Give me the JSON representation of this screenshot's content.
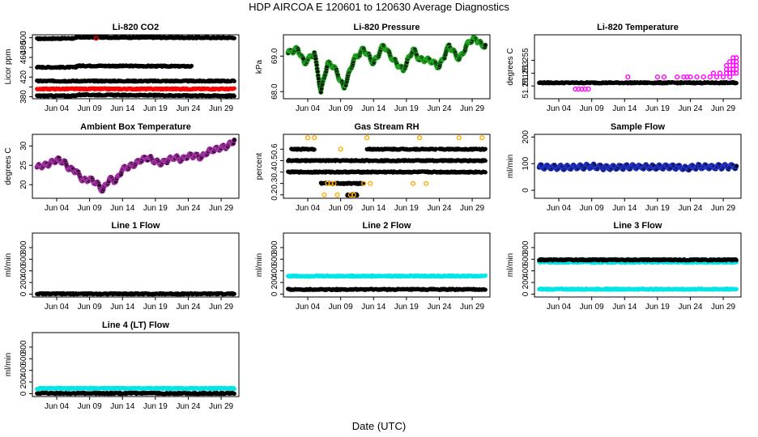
{
  "figure": {
    "title": "HDP    AIRCOA E    120601 to 120630    Average Diagnostics",
    "xlabel": "Date (UTC)"
  },
  "chart_data": [
    {
      "type": "scatter",
      "title": "Li-820 CO2",
      "ylabel": "Licor ppm",
      "ylim": [
        376,
        506
      ],
      "yticks": [
        380,
        400,
        420,
        440,
        460,
        480,
        500
      ],
      "ytick_labels": [
        "380",
        "",
        "420",
        "",
        "460",
        "480",
        "500"
      ],
      "x_ticks": [
        "Jun 04",
        "Jun 09",
        "Jun 14",
        "Jun 19",
        "Jun 24",
        "Jun 29"
      ],
      "series": [
        {
          "name": "ref-high",
          "color": "#000000",
          "kind": "band",
          "segments": [
            {
              "x": [
                1,
                7
              ],
              "y": [
                498,
                499
              ]
            },
            {
              "x": [
                7,
                31
              ],
              "y": [
                501,
                500
              ]
            }
          ]
        },
        {
          "name": "ref-mid",
          "color": "#000000",
          "kind": "band",
          "segments": [
            {
              "x": [
                1,
                7
              ],
              "y": [
                440,
                440
              ]
            },
            {
              "x": [
                7,
                24.5
              ],
              "y": [
                443,
                442
              ]
            }
          ]
        },
        {
          "name": "sample-upper",
          "color": "#000000",
          "kind": "band",
          "segments": [
            {
              "x": [
                1,
                31
              ],
              "y": [
                412,
                412
              ]
            }
          ]
        },
        {
          "name": "sample",
          "color": "#ff0000",
          "kind": "band",
          "segments": [
            {
              "x": [
                1,
                31
              ],
              "y": [
                396,
                396
              ]
            }
          ]
        },
        {
          "name": "ref-low",
          "color": "#000000",
          "kind": "band",
          "segments": [
            {
              "x": [
                1,
                7
              ],
              "y": [
                382,
                382
              ]
            },
            {
              "x": [
                7,
                31
              ],
              "y": [
                384,
                382
              ]
            }
          ]
        },
        {
          "name": "outlier",
          "color": "#ff0000",
          "kind": "points",
          "x": [
            10
          ],
          "y": [
            499
          ]
        }
      ]
    },
    {
      "type": "line",
      "title": "Li-820 Pressure",
      "ylabel": "kPa",
      "ylim": [
        67.8,
        69.6
      ],
      "yticks": [
        68.0,
        69.0
      ],
      "ytick_labels": [
        "68.0",
        "69.0"
      ],
      "x_ticks": [
        "Jun 04",
        "Jun 09",
        "Jun 14",
        "Jun 19",
        "Jun 24",
        "Jun 29"
      ],
      "series": [
        {
          "name": "pressure",
          "color": "#000000",
          "edge_color": "#22aa22",
          "kind": "line",
          "x": [
            1,
            2.5,
            3.5,
            5,
            6,
            7,
            8,
            9.5,
            11,
            12.5,
            14,
            15.5,
            17,
            18.5,
            20,
            21,
            22.5,
            24,
            25.5,
            27,
            28.5,
            29.5,
            30.5,
            31
          ],
          "y": [
            69.1,
            69.2,
            68.8,
            69.1,
            68.0,
            68.8,
            68.7,
            68.1,
            68.9,
            69.2,
            68.8,
            69.3,
            68.9,
            68.6,
            69.2,
            68.9,
            68.9,
            68.7,
            69.3,
            68.9,
            69.4,
            69.5,
            69.3,
            69.3
          ]
        }
      ]
    },
    {
      "type": "scatter",
      "title": "Li-820 Temperature",
      "ylabel": "degrees C",
      "ylim": [
        51.249,
        51.259
      ],
      "yticks": [
        51.251,
        51.253,
        51.255
      ],
      "ytick_labels": [
        "51.251",
        "51.253",
        "51.255"
      ],
      "x_ticks": [
        "Jun 04",
        "Jun 09",
        "Jun 14",
        "Jun 19",
        "Jun 24",
        "Jun 29"
      ],
      "series": [
        {
          "name": "temperature",
          "color": "#000000",
          "kind": "band",
          "segments": [
            {
              "x": [
                1,
                31
              ],
              "y": [
                51.2515,
                51.2515
              ]
            }
          ]
        },
        {
          "name": "discrete-high",
          "color": "#000000",
          "edge_color": "#ff00ff",
          "kind": "points",
          "x": [
            6.5,
            7.0,
            7.5,
            8.0,
            8.5,
            14.5,
            19.0,
            20.0,
            22.0,
            23.0,
            23.5,
            24.0,
            25.0,
            26.0,
            27.0,
            27.5,
            28.0,
            28.5,
            29.0,
            29.5,
            30.0,
            30.5,
            31.0,
            29.5,
            30.0,
            30.5,
            31.0,
            29.5,
            30.0,
            30.5,
            31.0,
            30.0,
            30.5,
            31.0,
            30.5,
            31.0
          ],
          "y": [
            51.2505,
            51.2505,
            51.2505,
            51.2505,
            51.2505,
            51.2524,
            51.2524,
            51.2524,
            51.2524,
            51.2524,
            51.2524,
            51.2524,
            51.2524,
            51.2524,
            51.2524,
            51.253,
            51.2524,
            51.253,
            51.2524,
            51.253,
            51.2524,
            51.2536,
            51.2542,
            51.2536,
            51.253,
            51.253,
            51.253,
            51.2542,
            51.2536,
            51.2542,
            51.2536,
            51.2548,
            51.2548,
            51.2548,
            51.2554,
            51.2554
          ]
        }
      ]
    },
    {
      "type": "line",
      "title": "Ambient Box Temperature",
      "ylabel": "degrees C",
      "ylim": [
        16.5,
        33
      ],
      "yticks": [
        20,
        25,
        30
      ],
      "ytick_labels": [
        "20",
        "25",
        "30"
      ],
      "x_ticks": [
        "Jun 04",
        "Jun 09",
        "Jun 14",
        "Jun 19",
        "Jun 24",
        "Jun 29"
      ],
      "series": [
        {
          "name": "ambient",
          "color": "#000000",
          "edge_color": "#aa33aa",
          "kind": "line",
          "x": [
            1,
            2,
            3,
            4,
            5,
            6,
            7,
            8,
            9,
            10,
            11,
            12,
            13,
            14,
            15,
            16,
            17,
            18,
            19,
            20,
            21,
            22,
            23,
            24,
            25,
            26,
            27,
            28,
            29,
            30,
            31
          ],
          "y": [
            24.5,
            25.0,
            25.5,
            26.5,
            26.0,
            24.0,
            23.5,
            21.0,
            21.5,
            20.5,
            18.5,
            21.5,
            21.0,
            24.0,
            24.5,
            25.5,
            26.5,
            27.0,
            26.0,
            25.5,
            26.5,
            27.0,
            26.5,
            27.5,
            27.5,
            27.0,
            28.5,
            29.0,
            29.5,
            30.0,
            31.5
          ]
        }
      ]
    },
    {
      "type": "scatter",
      "title": "Gas Stream RH",
      "ylabel": "percent",
      "ylim": [
        0.17,
        0.73
      ],
      "yticks": [
        0.2,
        0.3,
        0.4,
        0.5,
        0.6
      ],
      "ytick_labels": [
        "0.2",
        "0.3",
        "0.4",
        "0.5",
        "0.6"
      ],
      "x_ticks": [
        "Jun 04",
        "Jun 09",
        "Jun 14",
        "Jun 19",
        "Jun 24",
        "Jun 29"
      ],
      "series": [
        {
          "name": "rh-0.4",
          "color": "#000000",
          "kind": "band",
          "segments": [
            {
              "x": [
                1,
                31
              ],
              "y": [
                0.4,
                0.4
              ]
            }
          ]
        },
        {
          "name": "rh-0.5",
          "color": "#000000",
          "kind": "band",
          "segments": [
            {
              "x": [
                1,
                31
              ],
              "y": [
                0.5,
                0.5
              ]
            }
          ]
        },
        {
          "name": "rh-0.6",
          "color": "#000000",
          "kind": "band",
          "segments": [
            {
              "x": [
                1.5,
                5
              ],
              "y": [
                0.6,
                0.6
              ]
            },
            {
              "x": [
                13,
                23.5
              ],
              "y": [
                0.6,
                0.6
              ]
            },
            {
              "x": [
                24,
                31
              ],
              "y": [
                0.6,
                0.6
              ]
            }
          ]
        },
        {
          "name": "rh-0.3",
          "color": "#000000",
          "kind": "band",
          "segments": [
            {
              "x": [
                6,
                12.5
              ],
              "y": [
                0.3,
                0.3
              ]
            }
          ]
        },
        {
          "name": "rh-0.2",
          "color": "#000000",
          "kind": "band",
          "segments": [
            {
              "x": [
                10,
                11.5
              ],
              "y": [
                0.2,
                0.2
              ]
            }
          ]
        },
        {
          "name": "rh-high",
          "color": "#000000",
          "edge_color": "#ffaa00",
          "kind": "points",
          "x": [
            4.0,
            5.0,
            9.0,
            13.0,
            21.0,
            27.0,
            30.5,
            7.0,
            7.5,
            8.0,
            12.5,
            13.5,
            20.0,
            22.0,
            6.5,
            8.5,
            11.0,
            10.5
          ],
          "y": [
            0.7,
            0.7,
            0.6,
            0.7,
            0.7,
            0.7,
            0.7,
            0.3,
            0.3,
            0.3,
            0.3,
            0.3,
            0.3,
            0.3,
            0.2,
            0.2,
            0.2,
            0.2
          ]
        }
      ]
    },
    {
      "type": "line",
      "title": "Sample Flow",
      "ylabel": "ml/min",
      "ylim": [
        -30,
        210
      ],
      "yticks": [
        0,
        100,
        200
      ],
      "ytick_labels": [
        "0",
        "100",
        "200"
      ],
      "x_ticks": [
        "Jun 04",
        "Jun 09",
        "Jun 14",
        "Jun 19",
        "Jun 24",
        "Jun 29"
      ],
      "series": [
        {
          "name": "sample-flow",
          "color": "#000000",
          "edge_color": "#2233cc",
          "kind": "line",
          "x": [
            1,
            5,
            9,
            11,
            14,
            18,
            22,
            23.5,
            24,
            25,
            28,
            31
          ],
          "y": [
            88,
            86,
            90,
            85,
            88,
            87,
            88,
            80,
            87,
            88,
            88,
            90
          ]
        }
      ]
    },
    {
      "type": "scatter",
      "title": "Line 1 Flow",
      "ylabel": "ml/min",
      "ylim": [
        -50,
        1050
      ],
      "yticks": [
        0,
        200,
        400,
        600,
        800
      ],
      "ytick_labels": [
        "0",
        "200",
        "400",
        "600",
        "800"
      ],
      "x_ticks": [
        "Jun 04",
        "Jun 09",
        "Jun 14",
        "Jun 19",
        "Jun 24",
        "Jun 29"
      ],
      "series": [
        {
          "name": "line1",
          "color": "#000000",
          "kind": "band",
          "segments": [
            {
              "x": [
                1,
                31
              ],
              "y": [
                5,
                5
              ]
            }
          ]
        }
      ]
    },
    {
      "type": "scatter",
      "title": "Line 2 Flow",
      "ylabel": "ml/min",
      "ylim": [
        -50,
        1050
      ],
      "yticks": [
        0,
        200,
        400,
        600,
        800
      ],
      "ytick_labels": [
        "0",
        "200",
        "400",
        "600",
        "800"
      ],
      "x_ticks": [
        "Jun 04",
        "Jun 09",
        "Jun 14",
        "Jun 19",
        "Jun 24",
        "Jun 29"
      ],
      "series": [
        {
          "name": "line2-cyan",
          "color": "#00e5e5",
          "kind": "band",
          "segments": [
            {
              "x": [
                1,
                31
              ],
              "y": [
                310,
                310
              ]
            }
          ]
        },
        {
          "name": "line2-black",
          "color": "#000000",
          "kind": "band",
          "segments": [
            {
              "x": [
                1,
                31
              ],
              "y": [
                80,
                80
              ]
            }
          ]
        }
      ]
    },
    {
      "type": "scatter",
      "title": "Line 3 Flow",
      "ylabel": "ml/min",
      "ylim": [
        -50,
        1050
      ],
      "yticks": [
        0,
        200,
        400,
        600,
        800
      ],
      "ytick_labels": [
        "0",
        "200",
        "400",
        "600",
        "800"
      ],
      "x_ticks": [
        "Jun 04",
        "Jun 09",
        "Jun 14",
        "Jun 19",
        "Jun 24",
        "Jun 29"
      ],
      "series": [
        {
          "name": "line3-cyan-high",
          "color": "#00e5e5",
          "kind": "band",
          "segments": [
            {
              "x": [
                1,
                31
              ],
              "y": [
                550,
                550
              ]
            }
          ]
        },
        {
          "name": "line3-black",
          "color": "#000000",
          "kind": "band",
          "segments": [
            {
              "x": [
                1,
                31
              ],
              "y": [
                590,
                590
              ]
            }
          ]
        },
        {
          "name": "line3-cyan-low",
          "color": "#00e5e5",
          "kind": "band",
          "segments": [
            {
              "x": [
                1,
                31
              ],
              "y": [
                85,
                85
              ]
            }
          ]
        }
      ]
    },
    {
      "type": "scatter",
      "title": "Line 4 (LT) Flow",
      "ylabel": "ml/min",
      "ylim": [
        -50,
        1050
      ],
      "yticks": [
        0,
        200,
        400,
        600,
        800
      ],
      "ytick_labels": [
        "0",
        "200",
        "400",
        "600",
        "800"
      ],
      "x_ticks": [
        "Jun 04",
        "Jun 09",
        "Jun 14",
        "Jun 19",
        "Jun 24",
        "Jun 29"
      ],
      "series": [
        {
          "name": "line4-cyan",
          "color": "#00e5e5",
          "kind": "band",
          "segments": [
            {
              "x": [
                1,
                31
              ],
              "y": [
                90,
                90
              ]
            }
          ]
        },
        {
          "name": "line4-black",
          "color": "#000000",
          "kind": "band",
          "segments": [
            {
              "x": [
                1,
                31
              ],
              "y": [
                5,
                5
              ]
            }
          ]
        }
      ]
    }
  ]
}
